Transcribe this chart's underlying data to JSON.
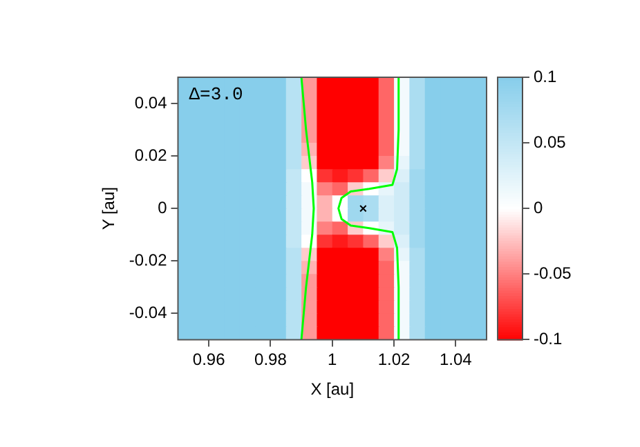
{
  "chart_data": {
    "type": "heatmap",
    "xlabel": "X [au]",
    "ylabel": "Y [au]",
    "annotations": [
      "Δ=3.0"
    ],
    "x": [
      0.9525,
      0.9575,
      0.9625,
      0.9675,
      0.9725,
      0.9775,
      0.9825,
      0.9875,
      0.9925,
      0.9975,
      1.0025,
      1.0075,
      1.0125,
      1.0175,
      1.0225,
      1.0275,
      1.0325,
      1.0375,
      1.0425,
      1.0475
    ],
    "y": [
      0.0475,
      0.0425,
      0.0375,
      0.0325,
      0.0275,
      0.0225,
      0.0175,
      0.0125,
      0.0075,
      0.0025,
      -0.0025,
      -0.0075,
      -0.0125,
      -0.0175,
      -0.0225,
      -0.0275,
      -0.0325,
      -0.0375,
      -0.0425,
      -0.0475
    ],
    "cells": [
      [
        0.1,
        0.1,
        0.1,
        0.1,
        0.1,
        0.1,
        0.1,
        0.06,
        -0.04,
        -0.1,
        -0.1,
        -0.1,
        -0.1,
        -0.06,
        0.01,
        0.07,
        0.1,
        0.1,
        0.1,
        0.1
      ],
      [
        0.1,
        0.1,
        0.1,
        0.1,
        0.1,
        0.1,
        0.1,
        0.06,
        -0.04,
        -0.1,
        -0.1,
        -0.1,
        -0.1,
        -0.06,
        0.01,
        0.07,
        0.1,
        0.1,
        0.1,
        0.1
      ],
      [
        0.1,
        0.1,
        0.1,
        0.1,
        0.1,
        0.1,
        0.1,
        0.06,
        -0.04,
        -0.1,
        -0.1,
        -0.1,
        -0.1,
        -0.06,
        0.01,
        0.07,
        0.1,
        0.1,
        0.1,
        0.1
      ],
      [
        0.1,
        0.1,
        0.1,
        0.1,
        0.1,
        0.1,
        0.1,
        0.06,
        -0.04,
        -0.1,
        -0.1,
        -0.1,
        -0.1,
        -0.06,
        0.01,
        0.07,
        0.1,
        0.1,
        0.1,
        0.1
      ],
      [
        0.1,
        0.1,
        0.1,
        0.1,
        0.1,
        0.1,
        0.1,
        0.06,
        -0.04,
        -0.1,
        -0.1,
        -0.1,
        -0.1,
        -0.06,
        0.01,
        0.07,
        0.1,
        0.1,
        0.1,
        0.1
      ],
      [
        0.1,
        0.1,
        0.1,
        0.1,
        0.1,
        0.1,
        0.1,
        0.06,
        -0.03,
        -0.1,
        -0.1,
        -0.1,
        -0.1,
        -0.06,
        0.01,
        0.07,
        0.1,
        0.1,
        0.1,
        0.1
      ],
      [
        0.1,
        0.1,
        0.1,
        0.1,
        0.1,
        0.1,
        0.1,
        0.06,
        -0.02,
        -0.1,
        -0.1,
        -0.1,
        -0.1,
        -0.05,
        0.02,
        0.07,
        0.1,
        0.1,
        0.1,
        0.1
      ],
      [
        0.1,
        0.1,
        0.1,
        0.1,
        0.1,
        0.1,
        0.1,
        0.05,
        0,
        -0.08,
        -0.09,
        -0.08,
        -0.06,
        -0.02,
        0.03,
        0.08,
        0.1,
        0.1,
        0.1,
        0.1
      ],
      [
        0.1,
        0.1,
        0.1,
        0.1,
        0.1,
        0.1,
        0.1,
        0.05,
        0.01,
        -0.05,
        -0.06,
        -0.02,
        0,
        0.02,
        0.04,
        0.08,
        0.1,
        0.1,
        0.1,
        0.1
      ],
      [
        0.1,
        0.1,
        0.1,
        0.1,
        0.1,
        0.1,
        0.1,
        0.05,
        0.01,
        -0.03,
        0,
        0.08,
        0.07,
        0.03,
        0.04,
        0.08,
        0.1,
        0.1,
        0.1,
        0.1
      ],
      [
        0.1,
        0.1,
        0.1,
        0.1,
        0.1,
        0.1,
        0.1,
        0.05,
        0.01,
        -0.03,
        0,
        0.08,
        0.07,
        0.03,
        0.04,
        0.08,
        0.1,
        0.1,
        0.1,
        0.1
      ],
      [
        0.1,
        0.1,
        0.1,
        0.1,
        0.1,
        0.1,
        0.1,
        0.05,
        0.01,
        -0.05,
        -0.06,
        -0.02,
        0,
        0.02,
        0.04,
        0.08,
        0.1,
        0.1,
        0.1,
        0.1
      ],
      [
        0.1,
        0.1,
        0.1,
        0.1,
        0.1,
        0.1,
        0.1,
        0.05,
        0,
        -0.08,
        -0.09,
        -0.08,
        -0.06,
        -0.02,
        0.03,
        0.08,
        0.1,
        0.1,
        0.1,
        0.1
      ],
      [
        0.1,
        0.1,
        0.1,
        0.1,
        0.1,
        0.1,
        0.1,
        0.06,
        -0.02,
        -0.1,
        -0.1,
        -0.1,
        -0.1,
        -0.05,
        0.02,
        0.07,
        0.1,
        0.1,
        0.1,
        0.1
      ],
      [
        0.1,
        0.1,
        0.1,
        0.1,
        0.1,
        0.1,
        0.1,
        0.06,
        -0.03,
        -0.1,
        -0.1,
        -0.1,
        -0.1,
        -0.06,
        0.01,
        0.07,
        0.1,
        0.1,
        0.1,
        0.1
      ],
      [
        0.1,
        0.1,
        0.1,
        0.1,
        0.1,
        0.1,
        0.1,
        0.06,
        -0.04,
        -0.1,
        -0.1,
        -0.1,
        -0.1,
        -0.06,
        0.01,
        0.07,
        0.1,
        0.1,
        0.1,
        0.1
      ],
      [
        0.1,
        0.1,
        0.1,
        0.1,
        0.1,
        0.1,
        0.1,
        0.06,
        -0.04,
        -0.1,
        -0.1,
        -0.1,
        -0.1,
        -0.06,
        0.01,
        0.07,
        0.1,
        0.1,
        0.1,
        0.1
      ],
      [
        0.1,
        0.1,
        0.1,
        0.1,
        0.1,
        0.1,
        0.1,
        0.06,
        -0.04,
        -0.1,
        -0.1,
        -0.1,
        -0.1,
        -0.06,
        0.01,
        0.07,
        0.1,
        0.1,
        0.1,
        0.1
      ],
      [
        0.1,
        0.1,
        0.1,
        0.1,
        0.1,
        0.1,
        0.1,
        0.06,
        -0.04,
        -0.1,
        -0.1,
        -0.1,
        -0.1,
        -0.06,
        0.01,
        0.07,
        0.1,
        0.1,
        0.1,
        0.1
      ],
      [
        0.1,
        0.1,
        0.1,
        0.1,
        0.1,
        0.1,
        0.1,
        0.06,
        -0.04,
        -0.1,
        -0.1,
        -0.1,
        -0.1,
        -0.06,
        0.01,
        0.07,
        0.1,
        0.1,
        0.1,
        0.1
      ]
    ],
    "series": [
      {
        "type": "line",
        "color": "#00ff00",
        "x": [
          0.99,
          0.9915,
          0.9935,
          0.994,
          0.9935,
          0.9915,
          0.99
        ],
        "values": [
          0.05,
          0.03,
          0.01,
          0,
          -0.01,
          -0.03,
          -0.05
        ]
      },
      {
        "type": "line",
        "color": "#00ff00",
        "x": [
          1.0215,
          1.0215,
          1.021,
          1.0195,
          1.012,
          1.006,
          1.003,
          1.002,
          1.003,
          1.006,
          1.012,
          1.0195,
          1.021,
          1.0215,
          1.0215
        ],
        "values": [
          0.05,
          0.03,
          0.015,
          0.009,
          0.0075,
          0.0065,
          0.004,
          0,
          -0.004,
          -0.0065,
          -0.0075,
          -0.009,
          -0.015,
          -0.03,
          -0.05
        ]
      },
      {
        "type": "scatter",
        "marker": "cross",
        "color": "#000000",
        "x": [
          1.01
        ],
        "values": [
          0
        ]
      }
    ],
    "xlim": [
      0.95,
      1.05
    ],
    "xticks": [
      0.96,
      0.98,
      1,
      1.02,
      1.04
    ],
    "ylim": [
      -0.05,
      0.05
    ],
    "yticks": [
      -0.04,
      -0.02,
      0,
      0.02,
      0.04
    ],
    "clim": [
      -0.1,
      0.1
    ],
    "cticks": [
      -0.1,
      -0.05,
      0,
      0.05,
      0.1
    ],
    "colors": [
      "#ff0000",
      "#ffffff",
      "#87ceeb"
    ]
  }
}
